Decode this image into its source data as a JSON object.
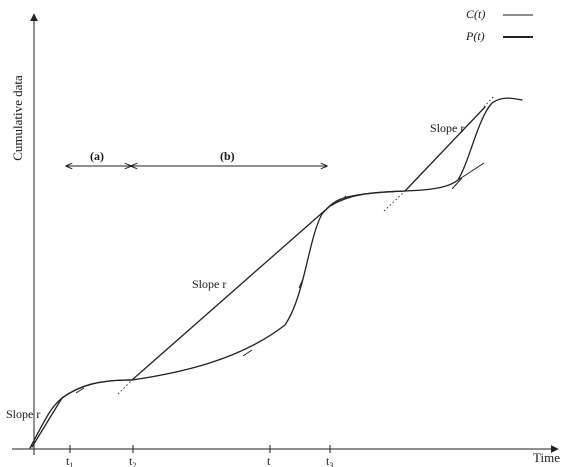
{
  "axes": {
    "y_label": "Cumulative data",
    "x_label": "Time"
  },
  "legend": {
    "items": [
      {
        "label": "C(t)",
        "style": "thin"
      },
      {
        "label": "P(t)",
        "style": "thick"
      }
    ]
  },
  "intervals": {
    "a": "(a)",
    "b": "(b)"
  },
  "slope_labels": {
    "bottom": "Slope r",
    "middle": "Slope r",
    "top": "Slope r"
  },
  "ticks": {
    "t1": "t",
    "t1_sub": "1",
    "t2": "t",
    "t2_sub": "2",
    "t": "t",
    "t3": "t",
    "t3_sub": "3"
  }
}
